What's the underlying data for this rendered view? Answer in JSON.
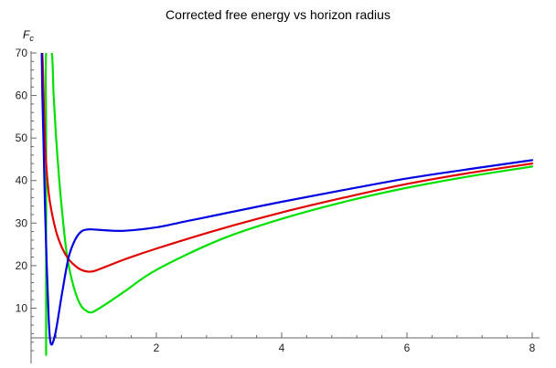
{
  "chart_data": {
    "type": "line",
    "title": "Corrected free energy vs horizon radius",
    "ylabel": "F",
    "ylabel_sub": "c",
    "xlabel": "",
    "xlim": [
      0,
      8
    ],
    "ylim": [
      -3,
      70
    ],
    "x_axis_at_y": 3,
    "y_axis_at_x": 0,
    "x_ticks": [
      2,
      4,
      6,
      8
    ],
    "y_ticks": [
      10,
      20,
      30,
      40,
      50,
      60,
      70
    ],
    "grid": false,
    "legend": "none",
    "series": [
      {
        "color": "#00e000",
        "x": [
          0.24,
          0.24,
          0.24,
          0.24,
          0.33,
          0.36,
          0.4,
          0.45,
          0.5,
          0.55,
          0.6,
          0.7,
          0.8,
          0.9,
          0.95,
          1.0,
          1.2,
          1.5,
          2.0,
          3.0,
          4.0,
          5.0,
          6.0,
          7.0,
          8.0
        ],
        "y": [
          -1,
          20,
          50,
          70,
          70,
          60,
          50,
          40,
          32,
          25,
          20,
          14,
          10.5,
          9.2,
          9.0,
          9.2,
          11,
          14,
          19,
          26,
          31,
          35,
          38.3,
          41,
          43.3
        ]
      },
      {
        "color": "#e00000",
        "x": [
          0.18,
          0.19,
          0.2,
          0.22,
          0.25,
          0.3,
          0.4,
          0.5,
          0.6,
          0.7,
          0.8,
          0.9,
          1.0,
          1.2,
          1.5,
          2.0,
          3.0,
          4.0,
          5.0,
          6.0,
          7.0,
          8.0
        ],
        "y": [
          70,
          66,
          60,
          50,
          42,
          35,
          28,
          24,
          21.5,
          20,
          19,
          18.6,
          18.7,
          19.8,
          21.5,
          24,
          28.5,
          32.5,
          36,
          39.2,
          41.8,
          44
        ]
      },
      {
        "color": "#0000e0",
        "x": [
          0.17,
          0.18,
          0.2,
          0.22,
          0.25,
          0.28,
          0.3,
          0.32,
          0.35,
          0.4,
          0.5,
          0.6,
          0.7,
          0.8,
          0.9,
          1.0,
          1.2,
          1.5,
          2.0,
          2.5,
          3.0,
          4.0,
          5.0,
          6.0,
          7.0,
          8.0
        ],
        "y": [
          70,
          60,
          48,
          35,
          20,
          8,
          3,
          1.5,
          2,
          5,
          14,
          22,
          26,
          28,
          28.5,
          28.5,
          28.3,
          28.2,
          29,
          30.5,
          32,
          35,
          37.8,
          40.5,
          42.7,
          44.8
        ]
      }
    ]
  }
}
